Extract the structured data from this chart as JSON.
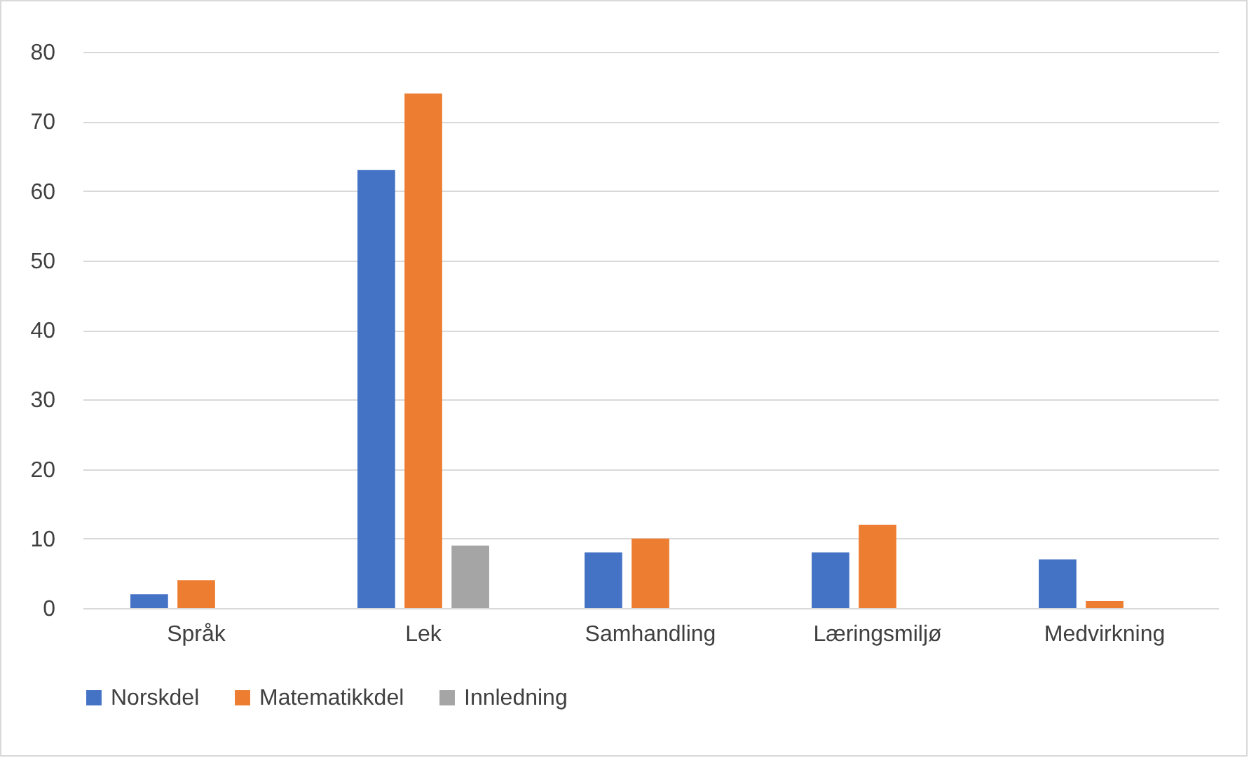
{
  "chart_data": {
    "type": "bar",
    "categories": [
      "Språk",
      "Lek",
      "Samhandling",
      "Læringsmiljø",
      "Medvirkning"
    ],
    "series": [
      {
        "name": "Norskdel",
        "color": "#4472c4",
        "values": [
          2,
          63,
          8,
          8,
          7
        ]
      },
      {
        "name": "Matematikkdel",
        "color": "#ed7d31",
        "values": [
          4,
          74,
          10,
          12,
          1
        ]
      },
      {
        "name": "Innledning",
        "color": "#a5a5a5",
        "values": [
          null,
          9,
          null,
          null,
          null
        ]
      }
    ],
    "ylim": [
      0,
      80
    ],
    "yticks": [
      0,
      10,
      20,
      30,
      40,
      50,
      60,
      70,
      80
    ],
    "grid": "y",
    "legend": "bottom"
  }
}
